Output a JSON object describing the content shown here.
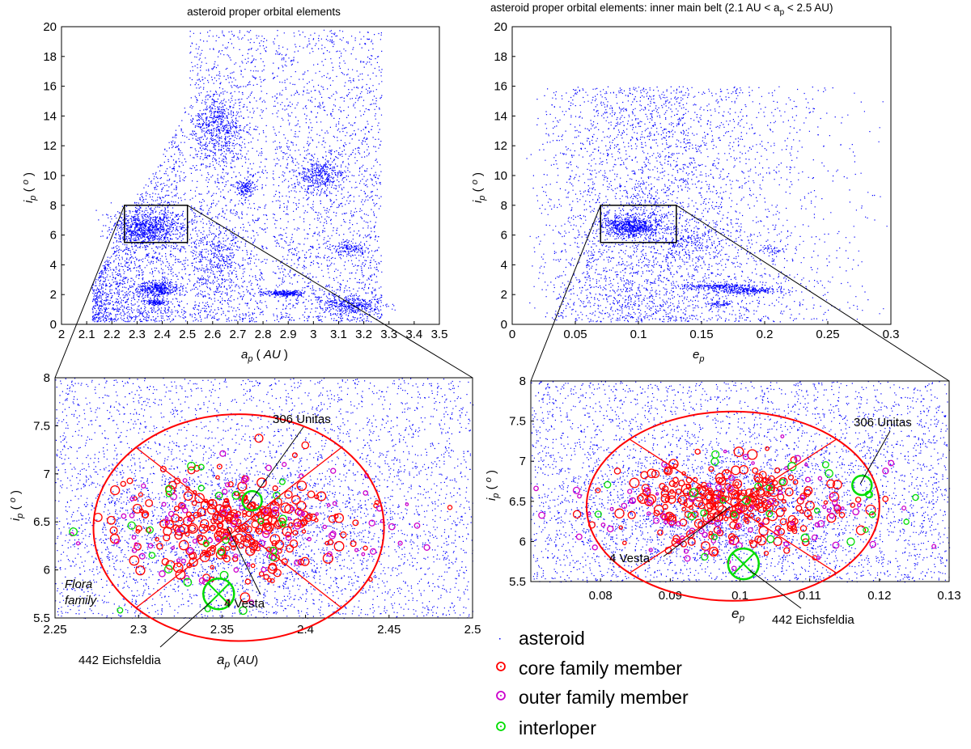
{
  "chart_data": [
    {
      "id": "p1",
      "type": "scatter",
      "title": "asteroid proper orbital elements",
      "xlabel": "a_p  (AU)",
      "ylabel": "i_p  (°)",
      "xlim": [
        2.0,
        3.5
      ],
      "ylim": [
        0,
        20
      ],
      "xticks": [
        "2",
        "2.1",
        "2.2",
        "2.3",
        "2.4",
        "2.5",
        "2.6",
        "2.7",
        "2.8",
        "2.9",
        "3",
        "3.1",
        "3.2",
        "3.3",
        "3.4",
        "3.5"
      ],
      "yticks": [
        "0",
        "2",
        "4",
        "6",
        "8",
        "10",
        "12",
        "14",
        "16",
        "18",
        "20"
      ],
      "zoom_box": {
        "x": [
          2.25,
          2.5
        ],
        "y": [
          5.5,
          8
        ]
      },
      "clusters": [
        {
          "x": 2.34,
          "y": 6.5,
          "sx": 0.07,
          "sy": 0.6,
          "n": 900
        },
        {
          "x": 2.38,
          "y": 2.4,
          "sx": 0.04,
          "sy": 0.25,
          "n": 350
        },
        {
          "x": 2.37,
          "y": 1.5,
          "sx": 0.02,
          "sy": 0.1,
          "n": 120
        },
        {
          "x": 2.62,
          "y": 13.2,
          "sx": 0.05,
          "sy": 1.3,
          "n": 600
        },
        {
          "x": 2.73,
          "y": 9.2,
          "sx": 0.02,
          "sy": 0.3,
          "n": 140
        },
        {
          "x": 3.02,
          "y": 10.0,
          "sx": 0.05,
          "sy": 0.6,
          "n": 400
        },
        {
          "x": 2.89,
          "y": 2.1,
          "sx": 0.04,
          "sy": 0.1,
          "n": 250
        },
        {
          "x": 3.15,
          "y": 1.4,
          "sx": 0.06,
          "sy": 0.3,
          "n": 350
        },
        {
          "x": 3.14,
          "y": 5.1,
          "sx": 0.04,
          "sy": 0.2,
          "n": 120
        },
        {
          "x": 2.6,
          "y": 4.5,
          "sx": 0.06,
          "sy": 1.2,
          "n": 350
        }
      ]
    },
    {
      "id": "p2",
      "type": "scatter",
      "title": "asteroid proper orbital elements: inner main belt (2.1 AU < a_p < 2.5 AU)",
      "xlabel": "e_p",
      "ylabel": "i_p  (°)",
      "xlim": [
        0,
        0.3
      ],
      "ylim": [
        0,
        20
      ],
      "xticks": [
        "0",
        "0.05",
        "0.1",
        "0.15",
        "0.2",
        "0.25",
        "0.3"
      ],
      "yticks": [
        "0",
        "2",
        "4",
        "6",
        "8",
        "10",
        "12",
        "14",
        "16",
        "18",
        "20"
      ],
      "zoom_box": {
        "x": [
          0.07,
          0.13
        ],
        "y": [
          5.5,
          8
        ]
      },
      "clusters": [
        {
          "x": 0.095,
          "y": 6.6,
          "sx": 0.012,
          "sy": 0.35,
          "n": 700
        },
        {
          "x": 0.185,
          "y": 2.3,
          "sx": 0.014,
          "sy": 0.12,
          "n": 250
        },
        {
          "x": 0.16,
          "y": 2.6,
          "sx": 0.014,
          "sy": 0.1,
          "n": 200
        },
        {
          "x": 0.165,
          "y": 1.4,
          "sx": 0.005,
          "sy": 0.08,
          "n": 60
        },
        {
          "x": 0.14,
          "y": 5.5,
          "sx": 0.015,
          "sy": 0.5,
          "n": 150
        },
        {
          "x": 0.205,
          "y": 5.0,
          "sx": 0.005,
          "sy": 0.15,
          "n": 40
        }
      ]
    },
    {
      "id": "p3",
      "type": "scatter",
      "xlabel": "a_p    (AU)",
      "ylabel": "i_p  (°)",
      "xlim": [
        2.25,
        2.5
      ],
      "ylim": [
        5.5,
        8
      ],
      "xticks": [
        "2.25",
        "2.3",
        "2.35",
        "2.4",
        "2.45",
        "2.5"
      ],
      "yticks": [
        "5.5",
        "6",
        "6.5",
        "7",
        "7.5",
        "8"
      ],
      "family_center": [
        2.36,
        6.44
      ],
      "ring_radius": [
        0.087,
        1.18
      ],
      "annotation_points": [
        [
          2.368,
          6.72
        ],
        [
          2.353,
          6.45
        ],
        [
          2.348,
          5.75
        ]
      ],
      "annotations": {
        "unitas": "306 Unitas",
        "vesta": "4 Vesta",
        "eichsfeldia": "442 Eichsfeldia",
        "flora_1": "Flora",
        "flora_2": "family"
      }
    },
    {
      "id": "p4",
      "type": "scatter",
      "xlabel": "e_p",
      "ylabel": "i_p  (°)",
      "xlim": [
        0.07,
        0.13
      ],
      "ylim": [
        5.5,
        8
      ],
      "xticks": [
        "0.08",
        "0.09",
        "0.1",
        "0.11",
        "0.12",
        "0.13"
      ],
      "yticks": [
        "5.5",
        "6",
        "6.5",
        "7",
        "7.5",
        "8"
      ],
      "family_center": [
        0.099,
        6.44
      ],
      "ring_radius": [
        0.021,
        1.18
      ],
      "annotation_points": [
        [
          0.1175,
          6.7
        ],
        [
          0.0985,
          6.43
        ],
        [
          0.1005,
          5.72
        ]
      ],
      "annotations": {
        "unitas": "306 Unitas",
        "vesta": "4 Vesta",
        "eichsfeldia": "442 Eichsfeldia"
      }
    }
  ],
  "legend": [
    {
      "label": "asteroid",
      "marker": "dot",
      "color": "#0000ff"
    },
    {
      "label": "core family member",
      "marker": "circle",
      "color": "#ff0000"
    },
    {
      "label": "outer family member",
      "marker": "circle",
      "color": "#cc00cc"
    },
    {
      "label": "interloper",
      "marker": "circle",
      "color": "#00dd00"
    }
  ],
  "colors": {
    "asteroid": "#0000ff",
    "core": "#ff0000",
    "outer": "#cc00cc",
    "interloper": "#00dd00"
  }
}
